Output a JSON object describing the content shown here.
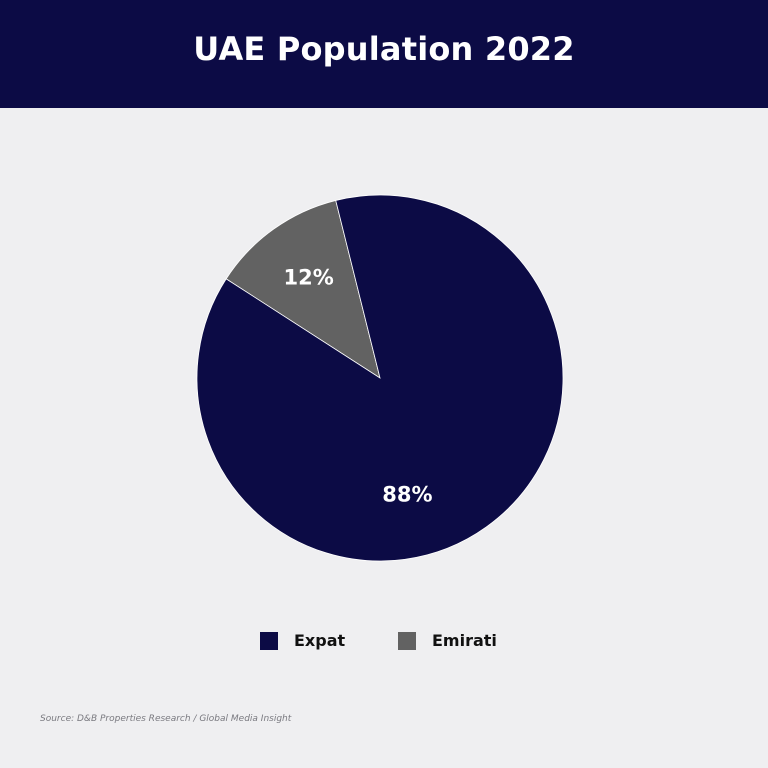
{
  "header": {
    "title": "UAE Population 2022"
  },
  "chart_data": {
    "type": "pie",
    "title": "UAE Population 2022",
    "categories": [
      "Expat",
      "Emirati"
    ],
    "values": [
      88,
      12
    ],
    "labels": [
      "88%",
      "12%"
    ],
    "colors": [
      "#0c0b45",
      "#626262"
    ],
    "legend_position": "bottom"
  },
  "legend": {
    "items": [
      {
        "label": "Expat",
        "color": "#0c0b45"
      },
      {
        "label": "Emirati",
        "color": "#626262"
      }
    ]
  },
  "footer": {
    "source": "Source: D&B Properties Research / Global Media Insight"
  }
}
